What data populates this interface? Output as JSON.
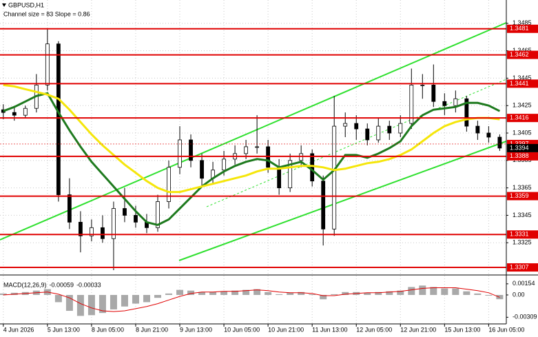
{
  "chart_data": [
    {
      "type": "candlestick",
      "symbol": "GBPUSD,H1",
      "subtitle": "Channel size = 83 Slope = 0.86",
      "xlim": [
        -0.3,
        45.6
      ],
      "xticks": [
        {
          "value": 0,
          "label": "4 Jun 2026"
        },
        {
          "value": 4,
          "label": "5 Jun 13:00"
        },
        {
          "value": 8,
          "label": "8 Jun 05:00"
        },
        {
          "value": 12,
          "label": "8 Jun 21:00"
        },
        {
          "value": 16,
          "label": "9 Jun 13:00"
        },
        {
          "value": 20,
          "label": "10 Jun 05:00"
        },
        {
          "value": 24,
          "label": "10 Jun 21:00"
        },
        {
          "value": 28,
          "label": "11 Jun 13:00"
        },
        {
          "value": 32,
          "label": "12 Jun 05:00"
        },
        {
          "value": 36,
          "label": "12 Jun 21:00"
        },
        {
          "value": 40,
          "label": "15 Jun 13:00"
        },
        {
          "value": 44,
          "label": "16 Jun 05:00"
        }
      ],
      "ylim": [
        1.3302,
        1.3502
      ],
      "yticks": [
        1.3485,
        1.3465,
        1.3445,
        1.3425,
        1.3405,
        1.3385,
        1.3365,
        1.3345,
        1.3325
      ],
      "candles": {
        "open": [
          1.3422,
          1.342,
          1.3418,
          1.3423,
          1.344,
          1.347,
          1.336,
          1.334,
          1.333,
          1.3336,
          1.3328,
          1.335,
          1.3345,
          1.334,
          1.3336,
          1.3355,
          1.338,
          1.34,
          1.3385,
          1.3372,
          1.3378,
          1.3386,
          1.339,
          1.3395,
          1.3395,
          1.338,
          1.3365,
          1.3385,
          1.339,
          1.337,
          1.3335,
          1.341,
          1.3412,
          1.3408,
          1.34,
          1.341,
          1.3405,
          1.3412,
          1.344,
          1.344,
          1.3428,
          1.3425,
          1.343,
          1.341,
          1.3405,
          1.3402
        ],
        "high": [
          1.3426,
          1.3424,
          1.3425,
          1.3448,
          1.3481,
          1.3472,
          1.3372,
          1.3348,
          1.3342,
          1.3345,
          1.3355,
          1.3365,
          1.3352,
          1.3346,
          1.336,
          1.3385,
          1.341,
          1.3404,
          1.339,
          1.3384,
          1.3392,
          1.3396,
          1.34,
          1.3418,
          1.34,
          1.3386,
          1.339,
          1.3396,
          1.3393,
          1.3374,
          1.3432,
          1.342,
          1.3418,
          1.3412,
          1.3416,
          1.3414,
          1.3418,
          1.3452,
          1.3448,
          1.3455,
          1.3434,
          1.3436,
          1.3432,
          1.3414,
          1.341,
          1.3404
        ],
        "low": [
          1.3415,
          1.3414,
          1.3416,
          1.342,
          1.3436,
          1.3355,
          1.3335,
          1.3318,
          1.3326,
          1.3325,
          1.3305,
          1.334,
          1.3336,
          1.3332,
          1.3333,
          1.335,
          1.3375,
          1.338,
          1.3366,
          1.3368,
          1.3374,
          1.3382,
          1.3386,
          1.339,
          1.3376,
          1.336,
          1.3362,
          1.338,
          1.3366,
          1.3323,
          1.333,
          1.3402,
          1.34,
          1.3396,
          1.3398,
          1.34,
          1.3402,
          1.3408,
          1.343,
          1.3424,
          1.3418,
          1.342,
          1.3406,
          1.34,
          1.3398,
          1.3392
        ],
        "close": [
          1.342,
          1.3418,
          1.3423,
          1.344,
          1.347,
          1.336,
          1.334,
          1.333,
          1.3336,
          1.3328,
          1.335,
          1.3345,
          1.334,
          1.3336,
          1.3355,
          1.338,
          1.34,
          1.3385,
          1.3372,
          1.3378,
          1.3386,
          1.339,
          1.3395,
          1.3395,
          1.338,
          1.3365,
          1.3385,
          1.339,
          1.337,
          1.3335,
          1.341,
          1.3412,
          1.3408,
          1.34,
          1.341,
          1.3405,
          1.3412,
          1.344,
          1.344,
          1.3428,
          1.3425,
          1.343,
          1.341,
          1.3405,
          1.3402,
          1.3394
        ]
      },
      "series": [
        {
          "color": "#1e7a1e",
          "values": [
            1.3421,
            1.3424,
            1.3428,
            1.3432,
            1.3434,
            1.342,
            1.3407,
            1.3395,
            1.3384,
            1.3375,
            1.3366,
            1.3357,
            1.3348,
            1.334,
            1.3338,
            1.3342,
            1.335,
            1.3358,
            1.3366,
            1.3372,
            1.3377,
            1.3381,
            1.3384,
            1.3386,
            1.3385,
            1.338,
            1.3382,
            1.3384,
            1.3378,
            1.3371,
            1.3378,
            1.3389,
            1.3389,
            1.3387,
            1.339,
            1.3394,
            1.3399,
            1.341,
            1.3418,
            1.3422,
            1.3423,
            1.3424,
            1.3427,
            1.3427,
            1.3425,
            1.3421
          ]
        },
        {
          "color": "#f5e60a",
          "values": [
            1.344,
            1.3439,
            1.3437,
            1.3435,
            1.3433,
            1.343,
            1.3422,
            1.3413,
            1.3404,
            1.3396,
            1.3389,
            1.3382,
            1.3376,
            1.337,
            1.3365,
            1.3362,
            1.3362,
            1.3364,
            1.3366,
            1.3368,
            1.337,
            1.3372,
            1.3374,
            1.3377,
            1.3379,
            1.3379,
            1.338,
            1.3381,
            1.3381,
            1.338,
            1.3378,
            1.3379,
            1.3381,
            1.3383,
            1.3384,
            1.3386,
            1.3389,
            1.3393,
            1.3399,
            1.3405,
            1.341,
            1.3413,
            1.3415,
            1.3416,
            1.3416,
            1.3415
          ]
        }
      ],
      "levels": [
        1.3481,
        1.3462,
        1.3441,
        1.3416,
        1.3388,
        1.3359,
        1.3331,
        1.3307
      ],
      "level_color": "#e00000",
      "ask": 1.3397,
      "last": 1.3394
    },
    {
      "type": "macd",
      "title": "MACD(12,26,9)",
      "ylim": [
        -0.00401,
        0.00267
      ],
      "yticks": [
        0.00154,
        {
          "value": 0,
          "label": "0.00"
        },
        -0.00309
      ],
      "series": [
        {
          "color": "#a9a9a9",
          "values": [
            0.0002,
            0.0003,
            0.0004,
            0.0006,
            0.0008,
            -0.001,
            -0.0022,
            -0.0029,
            -0.0028,
            -0.0025,
            -0.002,
            -0.0016,
            -0.0012,
            -0.001,
            -0.0004,
            0.0002,
            0.0007,
            0.0006,
            0.0004,
            0.0004,
            0.0005,
            0.0006,
            0.0007,
            0.0008,
            0.0004,
            0.0001,
            0.0003,
            0.0004,
            0.0001,
            -0.0006,
            0.0001,
            0.0004,
            0.0004,
            0.0003,
            0.0004,
            0.0005,
            0.0006,
            0.0011,
            0.0013,
            0.0011,
            0.0009,
            0.0009,
            0.0005,
            0.0002,
            -0.0001,
            -0.00059
          ]
        },
        {
          "color": "#e00000",
          "values": [
            0,
            0.0001,
            0.0002,
            0.0003,
            0.0004,
            0.0001,
            -0.0004,
            -0.0012,
            -0.0018,
            -0.0022,
            -0.0023,
            -0.0022,
            -0.0019,
            -0.0016,
            -0.0012,
            -0.0007,
            -0.0002,
            0.0002,
            0.0004,
            0.0004,
            0.0005,
            0.0005,
            0.0006,
            0.0007,
            0.0006,
            0.0004,
            0.0003,
            0.0003,
            0.0002,
            -0.0001,
            -0.0001,
            0.0001,
            0.0002,
            0.0003,
            0.0003,
            0.0004,
            0.0005,
            0.0007,
            0.0009,
            0.001,
            0.001,
            0.001,
            0.0008,
            0.0006,
            0.0003,
            -0.00033
          ]
        }
      ]
    }
  ]
}
